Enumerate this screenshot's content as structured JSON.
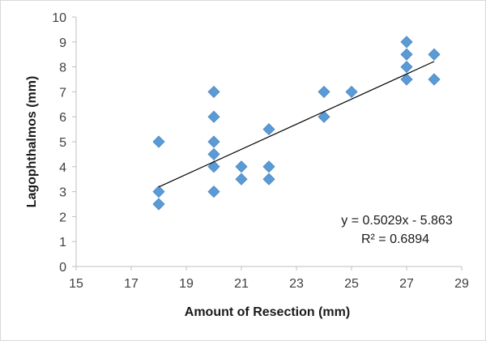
{
  "chart_data": {
    "type": "scatter",
    "title": "",
    "xlabel": "Amount of Resection (mm)",
    "ylabel": "Lagophthalmos (mm)",
    "xlim": [
      15,
      29
    ],
    "ylim": [
      0,
      10
    ],
    "xticks": [
      15,
      17,
      19,
      21,
      23,
      25,
      27,
      29
    ],
    "yticks": [
      0,
      1,
      2,
      3,
      4,
      5,
      6,
      7,
      8,
      9,
      10
    ],
    "grid": false,
    "legend": "none",
    "marker": "diamond",
    "marker_color": "#5b9bd5",
    "trendline_color": "#000000",
    "points": [
      {
        "x": 18,
        "y": 5
      },
      {
        "x": 18,
        "y": 3
      },
      {
        "x": 18,
        "y": 2.5
      },
      {
        "x": 20,
        "y": 7
      },
      {
        "x": 20,
        "y": 6
      },
      {
        "x": 20,
        "y": 5
      },
      {
        "x": 20,
        "y": 4.5
      },
      {
        "x": 20,
        "y": 4
      },
      {
        "x": 20,
        "y": 3
      },
      {
        "x": 21,
        "y": 4
      },
      {
        "x": 21,
        "y": 3.5
      },
      {
        "x": 22,
        "y": 5.5
      },
      {
        "x": 22,
        "y": 4
      },
      {
        "x": 22,
        "y": 3.5
      },
      {
        "x": 24,
        "y": 7
      },
      {
        "x": 24,
        "y": 6
      },
      {
        "x": 25,
        "y": 7
      },
      {
        "x": 27,
        "y": 9
      },
      {
        "x": 27,
        "y": 8.5
      },
      {
        "x": 27,
        "y": 8
      },
      {
        "x": 27,
        "y": 7.5
      },
      {
        "x": 28,
        "y": 8.5
      },
      {
        "x": 28,
        "y": 7.5
      }
    ],
    "trendline": {
      "slope": 0.5029,
      "intercept": -5.863,
      "x_range": [
        18,
        28
      ],
      "equation_label": "y = 0.5029x - 5.863",
      "r2_label": "R² = 0.6894"
    }
  }
}
